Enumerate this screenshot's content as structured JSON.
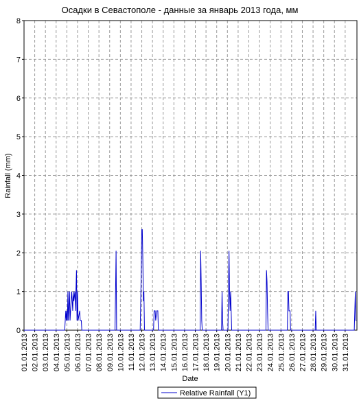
{
  "chart_data": {
    "type": "line",
    "title": "Осадки в Севастополе - данные за январь 2013 года, мм",
    "xlabel": "Date",
    "ylabel": "Rainfall (mm)",
    "xlim": [
      1,
      32.1
    ],
    "ylim": [
      0,
      8
    ],
    "yticks": [
      0,
      1,
      2,
      3,
      4,
      5,
      6,
      7,
      8
    ],
    "xticks": [
      {
        "value": 1,
        "label": "01.01.2013"
      },
      {
        "value": 2,
        "label": "02.01.2013"
      },
      {
        "value": 3,
        "label": "03.01.2013"
      },
      {
        "value": 4,
        "label": "04.01.2013"
      },
      {
        "value": 5,
        "label": "05.01.2013"
      },
      {
        "value": 6,
        "label": "06.01.2013"
      },
      {
        "value": 7,
        "label": "07.01.2013"
      },
      {
        "value": 8,
        "label": "08.01.2013"
      },
      {
        "value": 9,
        "label": "09.01.2013"
      },
      {
        "value": 10,
        "label": "10.01.2013"
      },
      {
        "value": 11,
        "label": "11.01.2013"
      },
      {
        "value": 12,
        "label": "12.01.2013"
      },
      {
        "value": 13,
        "label": "13.01.2013"
      },
      {
        "value": 14,
        "label": "14.01.2013"
      },
      {
        "value": 15,
        "label": "15.01.2013"
      },
      {
        "value": 16,
        "label": "16.01.2013"
      },
      {
        "value": 17,
        "label": "17.01.2013"
      },
      {
        "value": 18,
        "label": "18.01.2013"
      },
      {
        "value": 19,
        "label": "19.01.2013"
      },
      {
        "value": 20,
        "label": "20.01.2013"
      },
      {
        "value": 21,
        "label": "21.01.2013"
      },
      {
        "value": 22,
        "label": "22.01.2013"
      },
      {
        "value": 23,
        "label": "23.01.2013"
      },
      {
        "value": 24,
        "label": "24.01.2013"
      },
      {
        "value": 25,
        "label": "25.01.2013"
      },
      {
        "value": 26,
        "label": "26.01.2013"
      },
      {
        "value": 27,
        "label": "27.01.2013"
      },
      {
        "value": 28,
        "label": "28.01.2013"
      },
      {
        "value": 29,
        "label": "29.01.2013"
      },
      {
        "value": 30,
        "label": "30.01.2013"
      },
      {
        "value": 31,
        "label": "31.01.2013"
      }
    ],
    "grid": true,
    "legend": "bottom",
    "series": [
      {
        "name": "Relative Rainfall (Y1)",
        "color": "#0000cc",
        "x": [
          1,
          4.8,
          4.85,
          4.9,
          4.95,
          5.0,
          5.05,
          5.1,
          5.15,
          5.25,
          5.3,
          5.45,
          5.5,
          5.55,
          5.6,
          5.65,
          5.75,
          5.8,
          5.9,
          5.95,
          6.0,
          6.05,
          6.2,
          6.25,
          6.35,
          6.4,
          9.5,
          9.55,
          9.6,
          9.65,
          11.85,
          11.9,
          11.95,
          12.0,
          12.05,
          12.1,
          12.15,
          12.2,
          12.25,
          13.1,
          13.15,
          13.25,
          13.3,
          13.4,
          13.5,
          13.55,
          17.45,
          17.5,
          17.55,
          17.6,
          17.65,
          19.45,
          19.5,
          19.55,
          19.6,
          20.05,
          20.1,
          20.15,
          20.2,
          20.25,
          20.3,
          20.35,
          20.4,
          23.6,
          23.65,
          23.7,
          23.75,
          23.8,
          25.6,
          25.65,
          25.7,
          25.75,
          25.85,
          25.9,
          28.2,
          28.25,
          28.3,
          31.85,
          31.9,
          31.95,
          32.0,
          32.05
        ],
        "values": [
          0,
          0,
          0.25,
          0.5,
          0.25,
          0.5,
          0.25,
          1.0,
          0.25,
          1.0,
          0.25,
          1.0,
          0.75,
          0.5,
          1.0,
          0.75,
          1.0,
          0.5,
          1.55,
          0.25,
          1.0,
          0.25,
          0.5,
          0.25,
          0.25,
          0,
          0,
          1.0,
          2.05,
          0,
          0,
          0.75,
          1.5,
          2.6,
          2.6,
          1.8,
          0.75,
          1.0,
          0,
          0,
          0.5,
          0.5,
          0.25,
          0.5,
          0.5,
          0,
          0,
          2.05,
          1.25,
          0.25,
          0,
          0,
          1.0,
          0.25,
          0,
          0,
          1.0,
          2.05,
          1.0,
          0.5,
          1.0,
          0.5,
          0,
          0,
          1.55,
          1.25,
          0.5,
          0,
          0,
          1.0,
          1.0,
          0.5,
          0.5,
          0,
          0,
          0.5,
          0,
          0,
          0.5,
          1.0,
          0.25,
          0.25
        ]
      }
    ]
  }
}
